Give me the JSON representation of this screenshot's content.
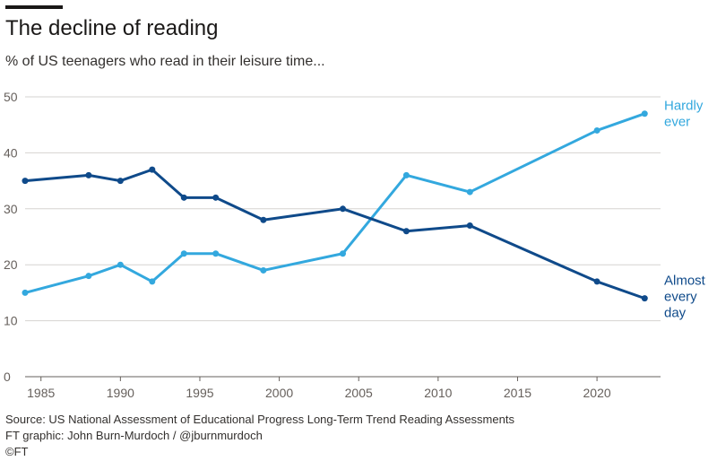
{
  "chart_data": {
    "type": "line",
    "title": "The decline of reading",
    "subtitle": "% of US teenagers who read in their leisure time...",
    "xlabel": "",
    "ylabel": "",
    "xlim": [
      1984,
      2024
    ],
    "ylim": [
      0,
      50
    ],
    "x_ticks": [
      1985,
      1990,
      1995,
      2000,
      2005,
      2010,
      2015,
      2020
    ],
    "y_ticks": [
      0,
      10,
      20,
      30,
      40,
      50
    ],
    "grid": true,
    "series": [
      {
        "name": "Hardly ever",
        "label_lines": [
          "Hardly",
          "ever"
        ],
        "color": "#33a8de",
        "x": [
          1984,
          1988,
          1990,
          1992,
          1994,
          1996,
          1999,
          2004,
          2008,
          2012,
          2020,
          2023
        ],
        "values": [
          15,
          18,
          20,
          17,
          22,
          22,
          19,
          22,
          36,
          33,
          44,
          47
        ]
      },
      {
        "name": "Almost every day",
        "label_lines": [
          "Almost",
          "every",
          "day"
        ],
        "color": "#0f4a8a",
        "x": [
          1984,
          1988,
          1990,
          1992,
          1994,
          1996,
          1999,
          2004,
          2008,
          2012,
          2020,
          2023
        ],
        "values": [
          35,
          36,
          35,
          37,
          32,
          32,
          28,
          30,
          26,
          27,
          17,
          14
        ]
      }
    ]
  },
  "footer": {
    "source": "Source: US National Assessment of Educational Progress Long-Term Trend Reading Assessments",
    "credit": "FT graphic: John Burn-Murdoch / @jburnmurdoch",
    "copyright": "©FT"
  }
}
